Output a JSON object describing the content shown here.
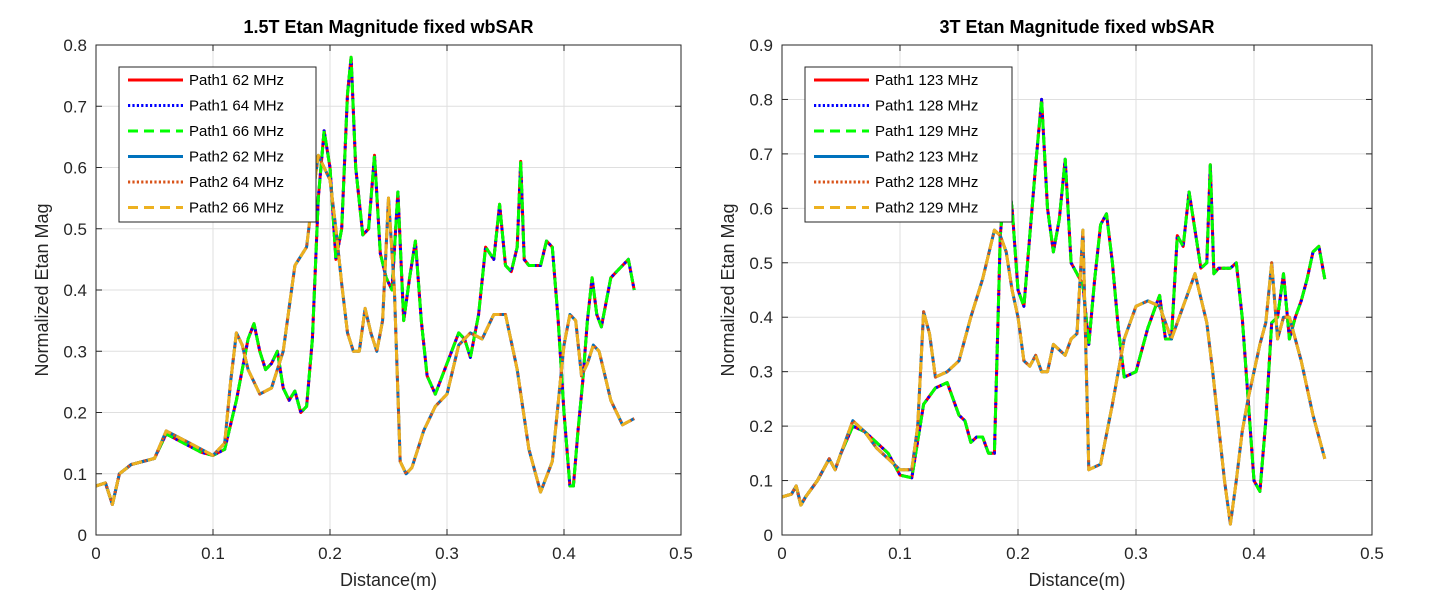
{
  "chart_data": [
    {
      "type": "line",
      "title": "1.5T Etan Magnitude fixed wbSAR",
      "xlabel": "Distance(m)",
      "ylabel": "Normalized Etan Mag",
      "xlim": [
        0,
        0.5
      ],
      "ylim": [
        0,
        0.8
      ],
      "xticks": [
        0,
        0.1,
        0.2,
        0.3,
        0.4,
        0.5
      ],
      "xtick_labels": [
        "0",
        "0.1",
        "0.2",
        "0.3",
        "0.4",
        "0.5"
      ],
      "yticks": [
        0,
        0.1,
        0.2,
        0.3,
        0.4,
        0.5,
        0.6,
        0.7,
        0.8
      ],
      "ytick_labels": [
        "0",
        "0.1",
        "0.2",
        "0.3",
        "0.4",
        "0.5",
        "0.6",
        "0.7",
        "0.8"
      ],
      "grid": true,
      "legend_position": "top-left",
      "series": [
        {
          "name": "Path1 62 MHz",
          "color": "#ff0000",
          "style": "solid",
          "profile": "path1"
        },
        {
          "name": "Path1 64 MHz",
          "color": "#0000ff",
          "style": "dotted",
          "profile": "path1"
        },
        {
          "name": "Path1 66 MHz",
          "color": "#00ff00",
          "style": "dashed",
          "profile": "path1"
        },
        {
          "name": "Path2 62 MHz",
          "color": "#0072bd",
          "style": "solid",
          "profile": "path2"
        },
        {
          "name": "Path2 64 MHz",
          "color": "#d95319",
          "style": "dotted",
          "profile": "path2"
        },
        {
          "name": "Path2 66 MHz",
          "color": "#edb120",
          "style": "dashed",
          "profile": "path2"
        }
      ],
      "profiles": {
        "path1": {
          "x": [
            0,
            0.008,
            0.014,
            0.02,
            0.03,
            0.04,
            0.05,
            0.06,
            0.07,
            0.08,
            0.09,
            0.1,
            0.11,
            0.12,
            0.13,
            0.135,
            0.14,
            0.145,
            0.15,
            0.155,
            0.16,
            0.165,
            0.17,
            0.175,
            0.18,
            0.185,
            0.19,
            0.195,
            0.2,
            0.205,
            0.21,
            0.215,
            0.218,
            0.222,
            0.228,
            0.233,
            0.238,
            0.243,
            0.248,
            0.253,
            0.258,
            0.263,
            0.268,
            0.273,
            0.278,
            0.283,
            0.29,
            0.3,
            0.31,
            0.315,
            0.32,
            0.327,
            0.333,
            0.34,
            0.345,
            0.35,
            0.355,
            0.36,
            0.363,
            0.366,
            0.37,
            0.375,
            0.38,
            0.385,
            0.39,
            0.395,
            0.4,
            0.405,
            0.408,
            0.412,
            0.416,
            0.42,
            0.424,
            0.428,
            0.432,
            0.436,
            0.44,
            0.445,
            0.45,
            0.455,
            0.46
          ],
          "y": [
            0.08,
            0.085,
            0.05,
            0.1,
            0.115,
            0.12,
            0.125,
            0.165,
            0.155,
            0.145,
            0.135,
            0.13,
            0.14,
            0.22,
            0.32,
            0.345,
            0.3,
            0.27,
            0.28,
            0.3,
            0.24,
            0.22,
            0.235,
            0.2,
            0.21,
            0.32,
            0.55,
            0.66,
            0.6,
            0.45,
            0.5,
            0.72,
            0.78,
            0.6,
            0.49,
            0.5,
            0.62,
            0.46,
            0.42,
            0.4,
            0.56,
            0.35,
            0.42,
            0.48,
            0.35,
            0.26,
            0.23,
            0.28,
            0.33,
            0.32,
            0.29,
            0.36,
            0.47,
            0.45,
            0.54,
            0.44,
            0.43,
            0.47,
            0.61,
            0.45,
            0.44,
            0.44,
            0.44,
            0.48,
            0.47,
            0.35,
            0.2,
            0.08,
            0.08,
            0.17,
            0.25,
            0.35,
            0.42,
            0.36,
            0.34,
            0.38,
            0.42,
            0.43,
            0.44,
            0.45,
            0.4
          ]
        },
        "path2": {
          "x": [
            0,
            0.008,
            0.014,
            0.02,
            0.03,
            0.04,
            0.05,
            0.06,
            0.07,
            0.08,
            0.09,
            0.1,
            0.11,
            0.115,
            0.12,
            0.125,
            0.13,
            0.14,
            0.15,
            0.16,
            0.17,
            0.18,
            0.185,
            0.19,
            0.195,
            0.2,
            0.205,
            0.21,
            0.215,
            0.22,
            0.225,
            0.23,
            0.235,
            0.24,
            0.245,
            0.25,
            0.255,
            0.26,
            0.265,
            0.27,
            0.275,
            0.28,
            0.29,
            0.3,
            0.31,
            0.32,
            0.33,
            0.34,
            0.35,
            0.36,
            0.37,
            0.38,
            0.39,
            0.4,
            0.405,
            0.41,
            0.415,
            0.42,
            0.425,
            0.43,
            0.435,
            0.44,
            0.45,
            0.46
          ],
          "y": [
            0.08,
            0.085,
            0.05,
            0.1,
            0.115,
            0.12,
            0.125,
            0.17,
            0.16,
            0.15,
            0.14,
            0.13,
            0.15,
            0.25,
            0.33,
            0.31,
            0.27,
            0.23,
            0.24,
            0.3,
            0.44,
            0.47,
            0.55,
            0.62,
            0.6,
            0.58,
            0.5,
            0.41,
            0.33,
            0.3,
            0.3,
            0.37,
            0.33,
            0.3,
            0.35,
            0.55,
            0.4,
            0.12,
            0.1,
            0.11,
            0.14,
            0.17,
            0.21,
            0.23,
            0.31,
            0.33,
            0.32,
            0.36,
            0.36,
            0.27,
            0.14,
            0.07,
            0.12,
            0.31,
            0.36,
            0.35,
            0.26,
            0.28,
            0.31,
            0.3,
            0.26,
            0.22,
            0.18,
            0.19
          ]
        }
      }
    },
    {
      "type": "line",
      "title": "3T Etan Magnitude fixed wbSAR",
      "xlabel": "Distance(m)",
      "ylabel": "Normalized Etan Mag",
      "xlim": [
        0,
        0.5
      ],
      "ylim": [
        0,
        0.9
      ],
      "xticks": [
        0,
        0.1,
        0.2,
        0.3,
        0.4,
        0.5
      ],
      "xtick_labels": [
        "0",
        "0.1",
        "0.2",
        "0.3",
        "0.4",
        "0.5"
      ],
      "yticks": [
        0,
        0.1,
        0.2,
        0.3,
        0.4,
        0.5,
        0.6,
        0.7,
        0.8,
        0.9
      ],
      "ytick_labels": [
        "0",
        "0.1",
        "0.2",
        "0.3",
        "0.4",
        "0.5",
        "0.6",
        "0.7",
        "0.8",
        "0.9"
      ],
      "grid": true,
      "legend_position": "top-left",
      "series": [
        {
          "name": "Path1 123 MHz",
          "color": "#ff0000",
          "style": "solid",
          "profile": "path1"
        },
        {
          "name": "Path1 128 MHz",
          "color": "#0000ff",
          "style": "dotted",
          "profile": "path1"
        },
        {
          "name": "Path1 129 MHz",
          "color": "#00ff00",
          "style": "dashed",
          "profile": "path1"
        },
        {
          "name": "Path2 123 MHz",
          "color": "#0072bd",
          "style": "solid",
          "profile": "path2"
        },
        {
          "name": "Path2 128 MHz",
          "color": "#d95319",
          "style": "dotted",
          "profile": "path2"
        },
        {
          "name": "Path2 129 MHz",
          "color": "#edb120",
          "style": "dashed",
          "profile": "path2"
        }
      ],
      "profiles": {
        "path1": {
          "x": [
            0,
            0.008,
            0.012,
            0.016,
            0.02,
            0.03,
            0.04,
            0.045,
            0.05,
            0.06,
            0.07,
            0.08,
            0.09,
            0.1,
            0.11,
            0.12,
            0.13,
            0.14,
            0.15,
            0.155,
            0.16,
            0.165,
            0.17,
            0.175,
            0.18,
            0.185,
            0.19,
            0.195,
            0.2,
            0.205,
            0.21,
            0.215,
            0.22,
            0.225,
            0.23,
            0.235,
            0.24,
            0.245,
            0.25,
            0.255,
            0.26,
            0.265,
            0.27,
            0.275,
            0.28,
            0.285,
            0.29,
            0.3,
            0.31,
            0.32,
            0.325,
            0.33,
            0.335,
            0.34,
            0.345,
            0.35,
            0.355,
            0.36,
            0.363,
            0.366,
            0.37,
            0.375,
            0.38,
            0.385,
            0.39,
            0.395,
            0.4,
            0.405,
            0.41,
            0.415,
            0.42,
            0.425,
            0.43,
            0.435,
            0.44,
            0.445,
            0.45,
            0.455,
            0.46
          ],
          "y": [
            0.07,
            0.075,
            0.09,
            0.055,
            0.07,
            0.1,
            0.14,
            0.12,
            0.15,
            0.2,
            0.19,
            0.17,
            0.15,
            0.11,
            0.105,
            0.24,
            0.27,
            0.28,
            0.22,
            0.21,
            0.17,
            0.18,
            0.18,
            0.15,
            0.15,
            0.55,
            0.68,
            0.6,
            0.45,
            0.42,
            0.55,
            0.68,
            0.8,
            0.6,
            0.52,
            0.58,
            0.69,
            0.5,
            0.48,
            0.46,
            0.35,
            0.47,
            0.57,
            0.59,
            0.5,
            0.38,
            0.29,
            0.3,
            0.38,
            0.44,
            0.36,
            0.36,
            0.55,
            0.53,
            0.63,
            0.56,
            0.49,
            0.5,
            0.68,
            0.48,
            0.49,
            0.49,
            0.49,
            0.5,
            0.4,
            0.25,
            0.1,
            0.08,
            0.21,
            0.39,
            0.4,
            0.48,
            0.36,
            0.4,
            0.43,
            0.47,
            0.52,
            0.53,
            0.47
          ]
        },
        "path2": {
          "x": [
            0,
            0.008,
            0.012,
            0.016,
            0.02,
            0.03,
            0.04,
            0.045,
            0.05,
            0.06,
            0.07,
            0.08,
            0.09,
            0.1,
            0.11,
            0.115,
            0.12,
            0.125,
            0.13,
            0.14,
            0.15,
            0.16,
            0.17,
            0.18,
            0.185,
            0.19,
            0.195,
            0.2,
            0.205,
            0.21,
            0.215,
            0.22,
            0.225,
            0.23,
            0.235,
            0.24,
            0.245,
            0.25,
            0.255,
            0.26,
            0.27,
            0.28,
            0.29,
            0.3,
            0.31,
            0.32,
            0.33,
            0.34,
            0.35,
            0.36,
            0.365,
            0.37,
            0.375,
            0.38,
            0.385,
            0.39,
            0.395,
            0.4,
            0.405,
            0.41,
            0.415,
            0.42,
            0.425,
            0.43,
            0.44,
            0.45,
            0.46
          ],
          "y": [
            0.07,
            0.075,
            0.09,
            0.055,
            0.07,
            0.1,
            0.14,
            0.12,
            0.15,
            0.21,
            0.19,
            0.16,
            0.14,
            0.12,
            0.12,
            0.2,
            0.41,
            0.37,
            0.29,
            0.3,
            0.32,
            0.4,
            0.47,
            0.56,
            0.55,
            0.52,
            0.45,
            0.4,
            0.32,
            0.31,
            0.33,
            0.3,
            0.3,
            0.35,
            0.34,
            0.33,
            0.36,
            0.37,
            0.56,
            0.12,
            0.13,
            0.24,
            0.36,
            0.42,
            0.43,
            0.42,
            0.36,
            0.42,
            0.48,
            0.39,
            0.3,
            0.2,
            0.1,
            0.02,
            0.1,
            0.19,
            0.25,
            0.3,
            0.35,
            0.39,
            0.5,
            0.36,
            0.4,
            0.4,
            0.32,
            0.22,
            0.14
          ]
        }
      }
    }
  ]
}
